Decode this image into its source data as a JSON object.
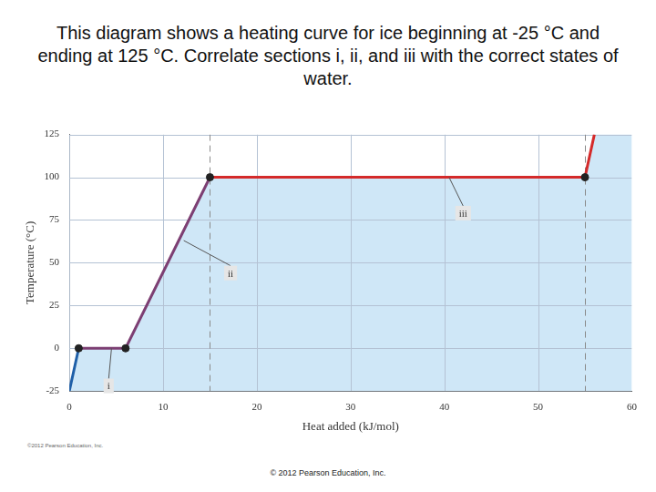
{
  "chart_data": {
    "type": "line",
    "title": "This diagram shows a heating curve for ice beginning at -25 °C and ending at 125 °C. Correlate sections i, ii, and iii with the correct states of water.",
    "x_label": "Heat added (kJ/mol)",
    "y_label": "Temperature (°C)",
    "x": [
      0,
      1,
      6,
      15,
      55,
      56
    ],
    "series": [
      {
        "color": "#1f5fa8",
        "type": "line",
        "marker": "none",
        "line_style": "solid",
        "values": [
          -25,
          0,
          null,
          null,
          null,
          null
        ]
      },
      {
        "color": "#7d3f73",
        "type": "line",
        "marker": "none",
        "line_style": "solid",
        "values": [
          null,
          0,
          0,
          100,
          null,
          null
        ]
      },
      {
        "color": "#d42a2a",
        "type": "line",
        "marker": "none",
        "line_style": "solid",
        "values": [
          null,
          null,
          null,
          100,
          100,
          125
        ]
      },
      {
        "color": "#222222",
        "type": "scatter",
        "marker": "circle",
        "values": [
          null,
          0,
          0,
          100,
          100,
          null
        ]
      }
    ],
    "xlim": [
      0,
      60
    ],
    "xticks": [
      0,
      10,
      20,
      30,
      40,
      50,
      60
    ],
    "ylim": [
      -25,
      125
    ],
    "yticks": [
      -25,
      0,
      25,
      50,
      75,
      100,
      125
    ],
    "grid": true,
    "reference_lines_x": [
      15,
      55
    ],
    "annotations": [
      {
        "text": "i",
        "x": 4.2,
        "y": -22,
        "arrow_to": [
          4.5,
          0
        ]
      },
      {
        "text": "ii",
        "x": 17.2,
        "y": 44,
        "arrow_to": [
          12.2,
          63
        ]
      },
      {
        "text": "iii",
        "x": 42,
        "y": 79,
        "arrow_to": [
          40.5,
          100
        ]
      }
    ],
    "credit": "©2012 Pearson Education, Inc."
  },
  "footer": "© 2012 Pearson Education, Inc."
}
